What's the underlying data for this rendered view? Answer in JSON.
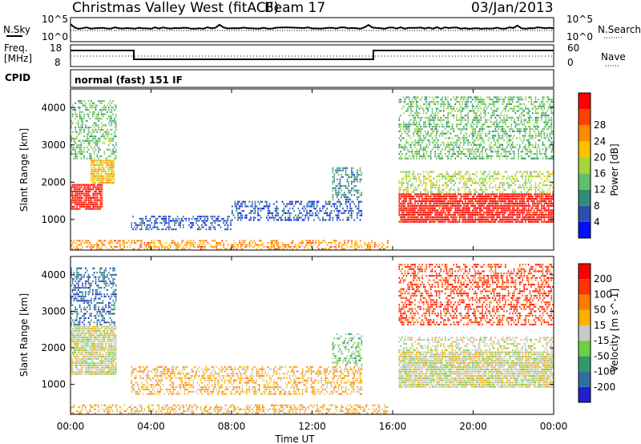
{
  "header": {
    "title": "Christmas Valley West (fitACF)",
    "beam": "Beam 17",
    "date": "03/Jan/2013"
  },
  "panels": {
    "nsky": {
      "label": "N.Sky",
      "left_ticks": [
        "10^5",
        "10^0"
      ]
    },
    "nsearch": {
      "label": "N.Search",
      "right_ticks": [
        "10^5",
        "10^0"
      ]
    },
    "freq": {
      "label_line1": "Freq.",
      "label_line2": "[MHz]",
      "left_ticks": [
        "18",
        "8"
      ]
    },
    "nave": {
      "label": "Nave",
      "right_ticks": [
        "60",
        "0"
      ]
    },
    "cpid": {
      "label": "CPID",
      "text": "normal (fast) 151 IF"
    }
  },
  "colors": {
    "power": [
      "#0010ff",
      "#2a4fb0",
      "#2d8c7a",
      "#5fbf6a",
      "#a4d63a",
      "#ffc000",
      "#ff8a00",
      "#ff4000",
      "#ff0000"
    ],
    "velocity": [
      "#2020d0",
      "#2e6fa0",
      "#2e9a6a",
      "#6cd040",
      "#c8c8c8",
      "#ffb000",
      "#ff7a00",
      "#ff3300",
      "#ff0000"
    ]
  },
  "chart_data": [
    {
      "type": "heatmap",
      "name": "power",
      "xlabel": "",
      "ylabel": "Slant Range [km]",
      "xlim": [
        "00:00",
        "00:00"
      ],
      "ylim": [
        180,
        4500
      ],
      "y_ticks": [
        1000,
        2000,
        3000,
        4000
      ],
      "colorbar": {
        "label": "Power [dB]",
        "ticks": [
          "4",
          "8",
          "12",
          "16",
          "20",
          "24",
          "28"
        ]
      },
      "regions": [
        {
          "t0": 0.0,
          "t1": 1.6,
          "r0": 1250,
          "r1": 1950,
          "level": 8
        },
        {
          "t0": 1.0,
          "t1": 2.2,
          "r0": 1950,
          "r1": 2600,
          "level": 5
        },
        {
          "t0": 0.0,
          "t1": 2.3,
          "r0": 2600,
          "r1": 4200,
          "level": 3,
          "sparse": true
        },
        {
          "t0": 3.0,
          "t1": 8.0,
          "r0": 700,
          "r1": 1100,
          "level": 1,
          "sparse": true
        },
        {
          "t0": 8.0,
          "t1": 14.5,
          "r0": 950,
          "r1": 1500,
          "level": 1,
          "sparse": true
        },
        {
          "t0": 13.0,
          "t1": 14.5,
          "r0": 1500,
          "r1": 2400,
          "level": 2,
          "sparse": true
        },
        {
          "t0": 0.0,
          "t1": 15.8,
          "r0": 180,
          "r1": 450,
          "level": 6,
          "sparse": true
        },
        {
          "t0": 16.3,
          "t1": 24.0,
          "r0": 900,
          "r1": 1700,
          "level": 8
        },
        {
          "t0": 16.3,
          "t1": 24.0,
          "r0": 1700,
          "r1": 2300,
          "level": 4,
          "sparse": true
        },
        {
          "t0": 16.3,
          "t1": 24.0,
          "r0": 2600,
          "r1": 4300,
          "level": 3,
          "sparse": true
        }
      ]
    },
    {
      "type": "heatmap",
      "name": "velocity",
      "xlabel": "Time UT",
      "ylabel": "Slant Range [km]",
      "x_ticks": [
        "00:00",
        "04:00",
        "08:00",
        "12:00",
        "16:00",
        "20:00",
        "00:00"
      ],
      "ylim": [
        180,
        4500
      ],
      "y_ticks": [
        1000,
        2000,
        3000,
        4000
      ],
      "colorbar": {
        "label": "Velocity [m s^-1]",
        "ticks": [
          "200",
          "100",
          "50",
          "15",
          "-15",
          "-50",
          "-100",
          "-200"
        ]
      },
      "regions": [
        {
          "t0": 0.0,
          "t1": 2.3,
          "r0": 1250,
          "r1": 2600,
          "level": 4
        },
        {
          "t0": 0.0,
          "t1": 2.3,
          "r0": 2600,
          "r1": 4200,
          "level": 1,
          "sparse": true
        },
        {
          "t0": 3.0,
          "t1": 14.5,
          "r0": 700,
          "r1": 1500,
          "level": 5,
          "sparse": true
        },
        {
          "t0": 13.0,
          "t1": 14.5,
          "r0": 1500,
          "r1": 2400,
          "level": 3,
          "sparse": true
        },
        {
          "t0": 0.0,
          "t1": 15.8,
          "r0": 180,
          "r1": 450,
          "level": 5,
          "sparse": true
        },
        {
          "t0": 16.3,
          "t1": 24.0,
          "r0": 900,
          "r1": 1900,
          "level": 4
        },
        {
          "t0": 16.3,
          "t1": 24.0,
          "r0": 1900,
          "r1": 2300,
          "level": 4,
          "sparse": true
        },
        {
          "t0": 16.3,
          "t1": 24.0,
          "r0": 2600,
          "r1": 4300,
          "level": 7,
          "sparse": true
        }
      ]
    }
  ]
}
